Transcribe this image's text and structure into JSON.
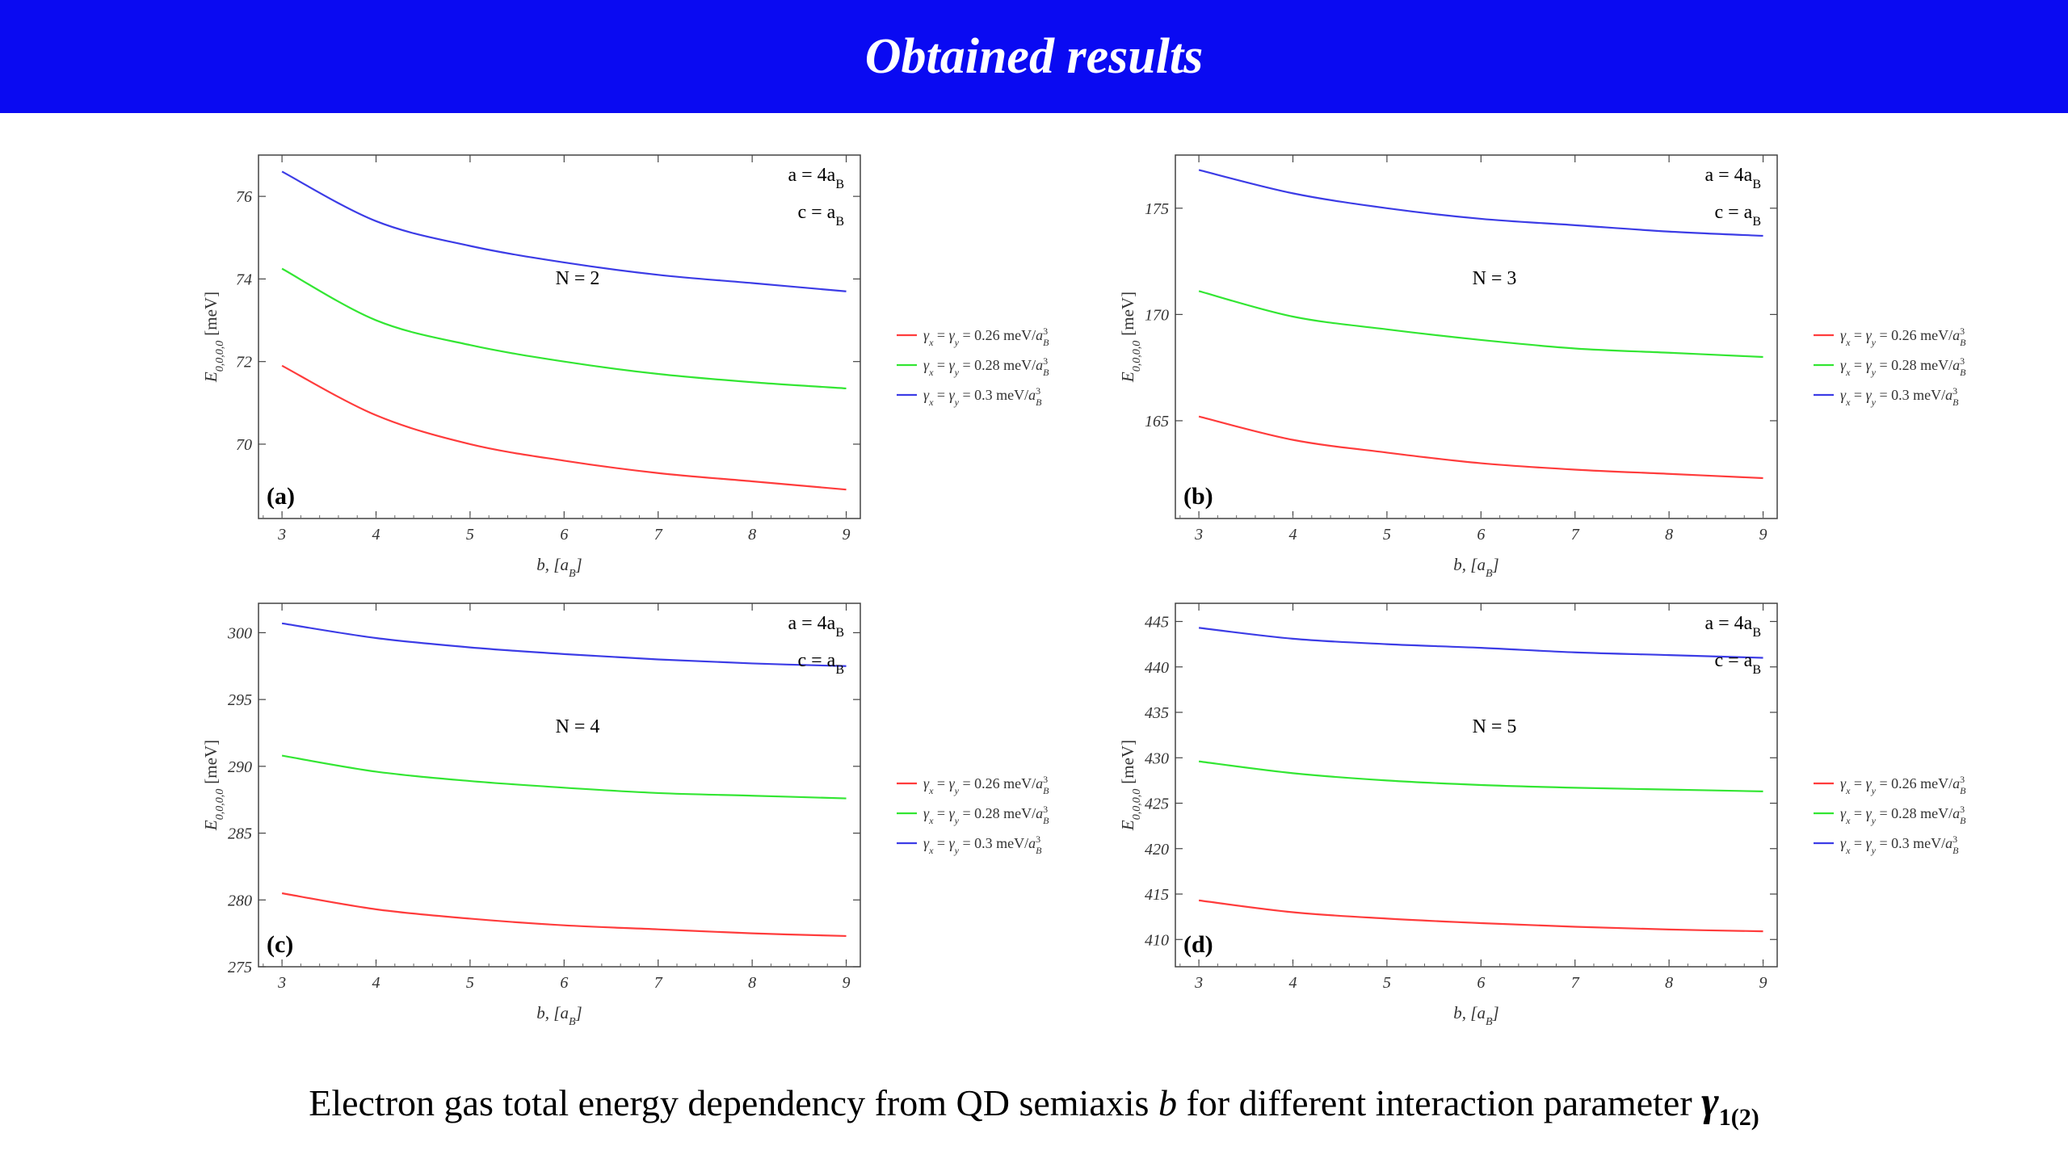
{
  "header": {
    "title": "Obtained results"
  },
  "caption": {
    "text_before": "Electron gas total energy dependency from QD semiaxis ",
    "var": "b",
    "text_after": " for different interaction parameter ",
    "gamma": "γ",
    "gamma_sub": "1(2)"
  },
  "legend_labels": [
    "γx = γy = 0.26 meV/aB³",
    "γx = γy = 0.28 meV/aB³",
    "γx = γy = 0.3 meV/aB³"
  ],
  "colors": {
    "header": "#0a0af2",
    "red": "#ff3c3c",
    "green": "#33e633",
    "blue": "#3c3ce6"
  },
  "chart_data": [
    {
      "type": "line",
      "panel_label": "(a)",
      "N_label": "N = 2",
      "param_a": "a = 4aB",
      "param_c": "c = aB",
      "xlabel": "b, [aB]",
      "ylabel": "E0,0,0,0 [meV]",
      "xlim": [
        2.75,
        9.15
      ],
      "ylim": [
        68.2,
        77.0
      ],
      "xticks": [
        3,
        4,
        5,
        6,
        7,
        8,
        9
      ],
      "yticks": [
        70,
        72,
        74,
        76
      ],
      "x": [
        3,
        4,
        5,
        6,
        7,
        8,
        9
      ],
      "series": [
        {
          "name": "γx = γy = 0.26 meV/aB³",
          "color": "#ff3c3c",
          "values": [
            71.9,
            70.7,
            70.0,
            69.6,
            69.3,
            69.1,
            68.9
          ]
        },
        {
          "name": "γx = γy = 0.28 meV/aB³",
          "color": "#33e633",
          "values": [
            74.25,
            73.0,
            72.4,
            72.0,
            71.7,
            71.5,
            71.35
          ]
        },
        {
          "name": "γx = γy = 0.3 meV/aB³",
          "color": "#3c3ce6",
          "values": [
            76.6,
            75.4,
            74.8,
            74.4,
            74.1,
            73.9,
            73.7
          ]
        }
      ]
    },
    {
      "type": "line",
      "panel_label": "(b)",
      "N_label": "N = 3",
      "param_a": "a = 4aB",
      "param_c": "c = aB",
      "xlabel": "b, [aB]",
      "ylabel": "E0,0,0,0 [meV]",
      "xlim": [
        2.75,
        9.15
      ],
      "ylim": [
        160.4,
        177.5
      ],
      "xticks": [
        3,
        4,
        5,
        6,
        7,
        8,
        9
      ],
      "yticks": [
        165,
        170,
        175
      ],
      "x": [
        3,
        4,
        5,
        6,
        7,
        8,
        9
      ],
      "series": [
        {
          "name": "γx = γy = 0.26 meV/aB³",
          "color": "#ff3c3c",
          "values": [
            165.2,
            164.1,
            163.5,
            163.0,
            162.7,
            162.5,
            162.3
          ]
        },
        {
          "name": "γx = γy = 0.28 meV/aB³",
          "color": "#33e633",
          "values": [
            171.1,
            169.9,
            169.3,
            168.8,
            168.4,
            168.2,
            168.0
          ]
        },
        {
          "name": "γx = γy = 0.3 meV/aB³",
          "color": "#3c3ce6",
          "values": [
            176.8,
            175.7,
            175.0,
            174.5,
            174.2,
            173.9,
            173.7
          ]
        }
      ]
    },
    {
      "type": "line",
      "panel_label": "(c)",
      "N_label": "N = 4",
      "param_a": "a = 4aB",
      "param_c": "c = aB",
      "xlabel": "b, [aB]",
      "ylabel": "E0,0,0,0 [meV]",
      "xlim": [
        2.75,
        9.15
      ],
      "ylim": [
        275.0,
        302.2
      ],
      "xticks": [
        3,
        4,
        5,
        6,
        7,
        8,
        9
      ],
      "yticks": [
        275,
        280,
        285,
        290,
        295,
        300
      ],
      "x": [
        3,
        4,
        5,
        6,
        7,
        8,
        9
      ],
      "series": [
        {
          "name": "γx = γy = 0.26 meV/aB³",
          "color": "#ff3c3c",
          "values": [
            280.5,
            279.3,
            278.6,
            278.1,
            277.8,
            277.5,
            277.3
          ]
        },
        {
          "name": "γx = γy = 0.28 meV/aB³",
          "color": "#33e633",
          "values": [
            290.8,
            289.6,
            288.9,
            288.4,
            288.0,
            287.8,
            287.6
          ]
        },
        {
          "name": "γx = γy = 0.3 meV/aB³",
          "color": "#3c3ce6",
          "values": [
            300.7,
            299.6,
            298.9,
            298.4,
            298.0,
            297.7,
            297.5
          ]
        }
      ]
    },
    {
      "type": "line",
      "panel_label": "(d)",
      "N_label": "N = 5",
      "param_a": "a = 4aB",
      "param_c": "c = aB",
      "xlabel": "b, [aB]",
      "ylabel": "E0,0,0,0 [meV]",
      "xlim": [
        2.75,
        9.15
      ],
      "ylim": [
        407.0,
        447.0
      ],
      "xticks": [
        3,
        4,
        5,
        6,
        7,
        8,
        9
      ],
      "yticks": [
        410,
        415,
        420,
        425,
        430,
        435,
        440,
        445
      ],
      "x": [
        3,
        4,
        5,
        6,
        7,
        8,
        9
      ],
      "series": [
        {
          "name": "γx = γy = 0.26 meV/aB³",
          "color": "#ff3c3c",
          "values": [
            414.3,
            413.0,
            412.3,
            411.8,
            411.4,
            411.1,
            410.9
          ]
        },
        {
          "name": "γx = γy = 0.28 meV/aB³",
          "color": "#33e633",
          "values": [
            429.6,
            428.3,
            427.5,
            427.0,
            426.7,
            426.5,
            426.3
          ]
        },
        {
          "name": "γx = γy = 0.3 meV/aB³",
          "color": "#3c3ce6",
          "values": [
            444.3,
            443.1,
            442.5,
            442.1,
            441.6,
            441.3,
            441.0
          ]
        }
      ]
    }
  ]
}
